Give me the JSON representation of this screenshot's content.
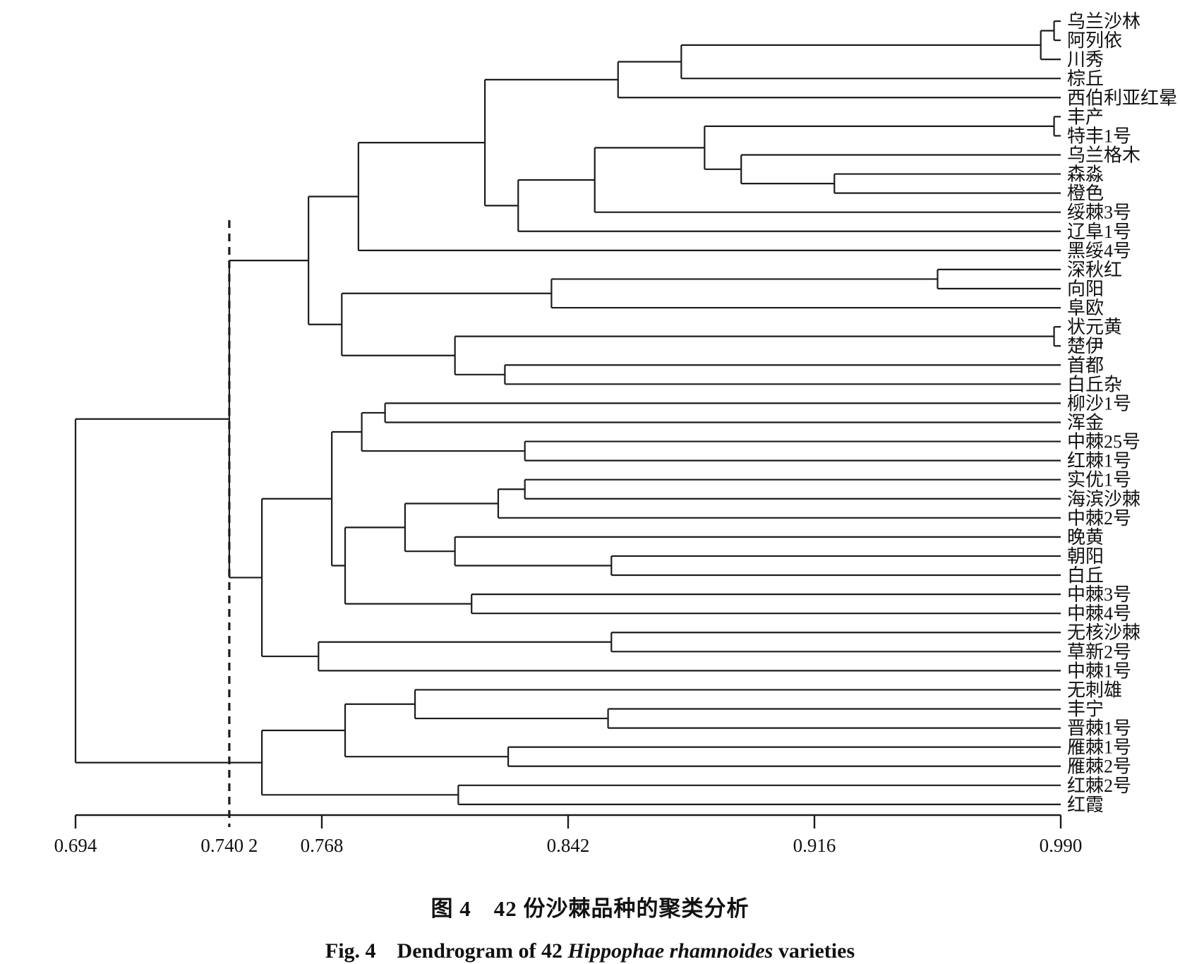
{
  "figure": {
    "caption_zh": "图 4　42 份沙棘品种的聚类分析",
    "caption_en_prefix": "Fig. 4　Dendrogram of 42 ",
    "caption_en_italic": "Hippophae rhamnoides",
    "caption_en_suffix": " varieties"
  },
  "chart_data": {
    "type": "dendrogram",
    "title": "图 4 42 份沙棘品种的聚类分析",
    "subtitle": "Fig. 4 Dendrogram of 42 Hippophae rhamnoides varieties",
    "orientation": "horizontal-right-labels",
    "xlabel": "",
    "ylabel": "",
    "grid": false,
    "line_color": "#1c1c1c",
    "threshold_value": 0.7402,
    "axis": {
      "min": 0.694,
      "max": 0.99,
      "ticks": [
        {
          "v": 0.694,
          "label": "0.694"
        },
        {
          "v": 0.7402,
          "label": "0.740 2",
          "dashed": true
        },
        {
          "v": 0.768,
          "label": "0.768"
        },
        {
          "v": 0.842,
          "label": "0.842"
        },
        {
          "v": 0.916,
          "label": "0.916"
        },
        {
          "v": 0.99,
          "label": "0.990"
        }
      ]
    },
    "leaves": [
      "乌兰沙林",
      "阿列依",
      "川秀",
      "棕丘",
      "西伯利亚红晕",
      "丰产",
      "特丰1号",
      "乌兰格木",
      "森淼",
      "橙色",
      "绥棘3号",
      "辽阜1号",
      "黑绥4号",
      "深秋红",
      "向阳",
      "阜欧",
      "状元黄",
      "楚伊",
      "首都",
      "白丘杂",
      "柳沙1号",
      "浑金",
      "中棘25号",
      "红棘1号",
      "实优1号",
      "海滨沙棘",
      "中棘2号",
      "晚黄",
      "朝阳",
      "白丘",
      "中棘3号",
      "中棘4号",
      "无核沙棘",
      "草新2号",
      "中棘1号",
      "无刺雄",
      "丰宁",
      "晋棘1号",
      "雁棘1号",
      "雁棘2号",
      "红棘2号",
      "红霞"
    ],
    "merges": [
      {
        "id": "N1",
        "a": "L0",
        "b": "L1",
        "v": 0.988
      },
      {
        "id": "N2",
        "a": "N1",
        "b": "L2",
        "v": 0.984
      },
      {
        "id": "N3",
        "a": "N2",
        "b": "L3",
        "v": 0.876
      },
      {
        "id": "N4",
        "a": "N3",
        "b": "L4",
        "v": 0.857
      },
      {
        "id": "N5",
        "a": "L5",
        "b": "L6",
        "v": 0.988
      },
      {
        "id": "N6",
        "a": "L8",
        "b": "L9",
        "v": 0.922
      },
      {
        "id": "N7",
        "a": "L7",
        "b": "N6",
        "v": 0.894
      },
      {
        "id": "N8",
        "a": "N5",
        "b": "N7",
        "v": 0.883
      },
      {
        "id": "N9",
        "a": "N8",
        "b": "L10",
        "v": 0.85
      },
      {
        "id": "N10",
        "a": "N9",
        "b": "L11",
        "v": 0.827
      },
      {
        "id": "N11",
        "a": "N4",
        "b": "N10",
        "v": 0.817
      },
      {
        "id": "N12",
        "a": "N11",
        "b": "L12",
        "v": 0.779
      },
      {
        "id": "N13",
        "a": "L13",
        "b": "L14",
        "v": 0.953
      },
      {
        "id": "N14",
        "a": "N13",
        "b": "L15",
        "v": 0.837
      },
      {
        "id": "N15",
        "a": "L16",
        "b": "L17",
        "v": 0.988
      },
      {
        "id": "N16",
        "a": "L18",
        "b": "L19",
        "v": 0.823
      },
      {
        "id": "N17",
        "a": "N15",
        "b": "N16",
        "v": 0.808
      },
      {
        "id": "N18",
        "a": "N14",
        "b": "N17",
        "v": 0.774
      },
      {
        "id": "N19",
        "a": "N12",
        "b": "N18",
        "v": 0.764
      },
      {
        "id": "N20",
        "a": "L20",
        "b": "L21",
        "v": 0.787
      },
      {
        "id": "N21",
        "a": "L22",
        "b": "L23",
        "v": 0.829
      },
      {
        "id": "N22",
        "a": "N20",
        "b": "N21",
        "v": 0.78
      },
      {
        "id": "N23",
        "a": "L24",
        "b": "L25",
        "v": 0.829
      },
      {
        "id": "N24",
        "a": "N23",
        "b": "L26",
        "v": 0.821
      },
      {
        "id": "N25",
        "a": "L28",
        "b": "L29",
        "v": 0.855
      },
      {
        "id": "N26",
        "a": "L27",
        "b": "N25",
        "v": 0.808
      },
      {
        "id": "N27",
        "a": "N24",
        "b": "N26",
        "v": 0.793
      },
      {
        "id": "N28",
        "a": "L30",
        "b": "L31",
        "v": 0.813
      },
      {
        "id": "N29",
        "a": "N27",
        "b": "N28",
        "v": 0.775
      },
      {
        "id": "N30",
        "a": "N22",
        "b": "N29",
        "v": 0.771
      },
      {
        "id": "N31",
        "a": "L32",
        "b": "L33",
        "v": 0.855
      },
      {
        "id": "N32",
        "a": "N31",
        "b": "L34",
        "v": 0.767
      },
      {
        "id": "N33",
        "a": "N30",
        "b": "N32",
        "v": 0.75
      },
      {
        "id": "N34",
        "a": "N19",
        "b": "N33",
        "v": 0.7402
      },
      {
        "id": "N35",
        "a": "L36",
        "b": "L37",
        "v": 0.854
      },
      {
        "id": "N36",
        "a": "L35",
        "b": "N35",
        "v": 0.796
      },
      {
        "id": "N37",
        "a": "L38",
        "b": "L39",
        "v": 0.824
      },
      {
        "id": "N38",
        "a": "N36",
        "b": "N37",
        "v": 0.775
      },
      {
        "id": "N39",
        "a": "L40",
        "b": "L41",
        "v": 0.809
      },
      {
        "id": "N40",
        "a": "N38",
        "b": "N39",
        "v": 0.75
      },
      {
        "id": "N41",
        "a": "N34",
        "b": "N40",
        "v": 0.694
      }
    ]
  }
}
